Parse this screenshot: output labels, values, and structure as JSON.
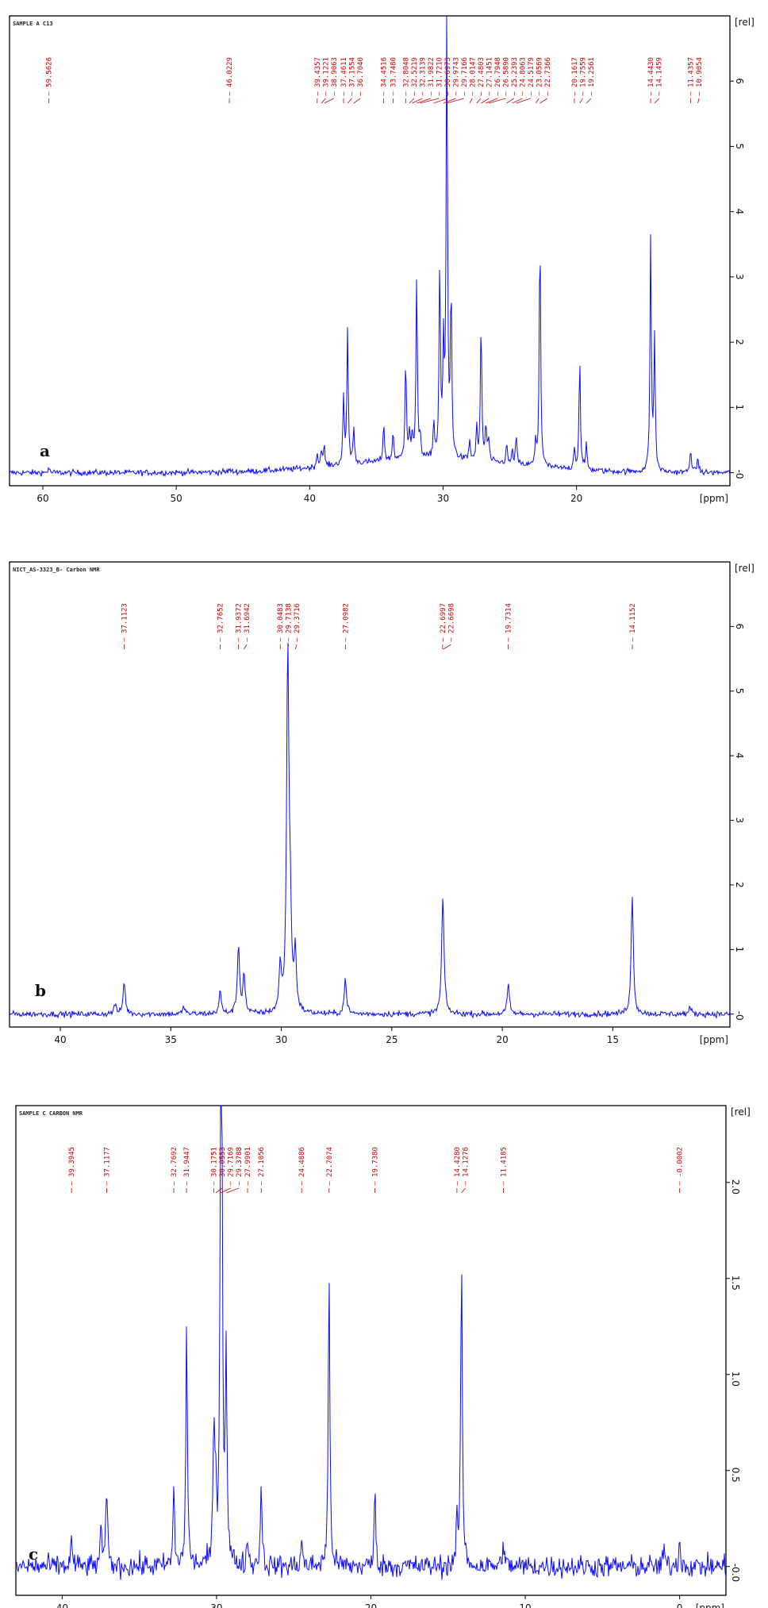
{
  "chart_data": [
    {
      "type": "line",
      "title": "SAMPLE A C13",
      "panel_label": "a",
      "xlabel": "[ppm]",
      "ylabel": "[rel]",
      "xlim": [
        62.5,
        8.5
      ],
      "ylim": [
        -0.2,
        7.0
      ],
      "x_ticks": [
        60,
        50,
        40,
        30,
        20
      ],
      "y_ticks": [
        0,
        1,
        2,
        3,
        4,
        5,
        6
      ],
      "peak_labels": [
        "59.5626",
        "46.0229",
        "39.4357",
        "39.1221",
        "38.9063",
        "37.4611",
        "37.1554",
        "36.7040",
        "34.4516",
        "33.7480",
        "32.8048",
        "32.5219",
        "32.3139",
        "31.9822",
        "31.7210",
        "30.6973",
        "29.9743",
        "29.7166",
        "28.0147",
        "27.4803",
        "27.1451",
        "26.7948",
        "26.5890",
        "25.2393",
        "24.8063",
        "24.5179",
        "23.0569",
        "22.7366",
        "20.1617",
        "19.7559",
        "19.2561",
        "14.4430",
        "14.1459",
        "11.4357",
        "10.9054"
      ],
      "peaks": [
        [
          59.56,
          0.08
        ],
        [
          46.02,
          0.04
        ],
        [
          39.44,
          0.22
        ],
        [
          39.12,
          0.28
        ],
        [
          38.91,
          0.3
        ],
        [
          37.46,
          1.0
        ],
        [
          37.16,
          2.05
        ],
        [
          36.7,
          0.55
        ],
        [
          34.45,
          0.6
        ],
        [
          33.75,
          0.45
        ],
        [
          32.8,
          1.58
        ],
        [
          32.52,
          0.4
        ],
        [
          32.31,
          0.35
        ],
        [
          31.98,
          2.78
        ],
        [
          31.72,
          0.35
        ],
        [
          30.7,
          0.55
        ],
        [
          30.25,
          2.95
        ],
        [
          29.97,
          1.6
        ],
        [
          29.72,
          6.9
        ],
        [
          29.4,
          2.55
        ],
        [
          28.01,
          0.3
        ],
        [
          27.48,
          0.5
        ],
        [
          27.15,
          2.15
        ],
        [
          26.79,
          0.55
        ],
        [
          26.59,
          0.35
        ],
        [
          25.24,
          0.3
        ],
        [
          24.81,
          0.2
        ],
        [
          24.52,
          0.45
        ],
        [
          23.06,
          0.35
        ],
        [
          22.74,
          3.68
        ],
        [
          20.16,
          0.35
        ],
        [
          19.76,
          1.72
        ],
        [
          19.26,
          0.4
        ],
        [
          14.44,
          3.58
        ],
        [
          14.15,
          2.05
        ],
        [
          11.44,
          0.4
        ],
        [
          10.91,
          0.25
        ]
      ],
      "grid": false
    },
    {
      "type": "line",
      "title": "NICT_AS-3323_B- Carbon NMR",
      "panel_label": "b",
      "xlabel": "[ppm]",
      "ylabel": "[rel]",
      "xlim": [
        42.3,
        9.7
      ],
      "ylim": [
        -0.2,
        7.0
      ],
      "x_ticks": [
        40,
        35,
        30,
        25,
        20,
        15
      ],
      "y_ticks": [
        0,
        1,
        2,
        3,
        4,
        5,
        6
      ],
      "peak_labels": [
        "37.1123",
        "32.7652",
        "31.9372",
        "31.6942",
        "30.0483",
        "29.7138",
        "29.3716",
        "27.0982",
        "22.6997",
        "22.6698",
        "19.7314",
        "14.1152"
      ],
      "peaks": [
        [
          37.53,
          0.15
        ],
        [
          37.11,
          0.5
        ],
        [
          34.4,
          0.12
        ],
        [
          32.77,
          0.35
        ],
        [
          31.94,
          1.05
        ],
        [
          31.69,
          0.6
        ],
        [
          30.05,
          0.7
        ],
        [
          29.71,
          5.55
        ],
        [
          29.6,
          1.35
        ],
        [
          29.37,
          0.9
        ],
        [
          27.1,
          0.55
        ],
        [
          22.7,
          1.28
        ],
        [
          22.67,
          0.6
        ],
        [
          19.73,
          0.45
        ],
        [
          14.12,
          1.82
        ],
        [
          11.5,
          0.1
        ]
      ],
      "grid": false
    },
    {
      "type": "line",
      "title": "SAMPLE C CARBON NMR",
      "panel_label": "c",
      "xlabel": "[ppm]",
      "ylabel": "[rel]",
      "xlim": [
        43.0,
        -3.0
      ],
      "ylim": [
        -0.15,
        2.4
      ],
      "x_ticks": [
        40,
        30,
        20,
        10,
        0
      ],
      "y_ticks": [
        0.0,
        0.5,
        1.0,
        1.5,
        2.0
      ],
      "y_tick_labels": [
        "-0.0",
        "0.5",
        "1.0",
        "1.5",
        "2.0"
      ],
      "peak_labels": [
        "39.3945",
        "37.1177",
        "32.7692",
        "31.9447",
        "30.1751",
        "30.0553",
        "29.7169",
        "29.3788",
        "27.9901",
        "27.1056",
        "24.4886",
        "22.7074",
        "19.7380",
        "14.4280",
        "14.1276",
        "11.4185",
        "-0.0002"
      ],
      "peaks": [
        [
          39.39,
          0.15
        ],
        [
          37.5,
          0.2
        ],
        [
          37.12,
          0.45
        ],
        [
          32.77,
          0.4
        ],
        [
          31.94,
          1.25
        ],
        [
          30.18,
          0.65
        ],
        [
          30.06,
          0.4
        ],
        [
          29.72,
          2.4
        ],
        [
          29.66,
          1.55
        ],
        [
          29.38,
          1.1
        ],
        [
          27.99,
          0.15
        ],
        [
          27.11,
          0.45
        ],
        [
          24.49,
          0.15
        ],
        [
          22.71,
          1.55
        ],
        [
          19.74,
          0.38
        ],
        [
          14.43,
          0.22
        ],
        [
          14.13,
          1.65
        ],
        [
          11.42,
          0.15
        ],
        [
          1.0,
          0.1
        ],
        [
          0.0,
          0.15
        ]
      ],
      "grid": false
    }
  ],
  "style": {
    "trace": "#0a0aff",
    "label": "#cc0000",
    "frame": "#000000"
  }
}
